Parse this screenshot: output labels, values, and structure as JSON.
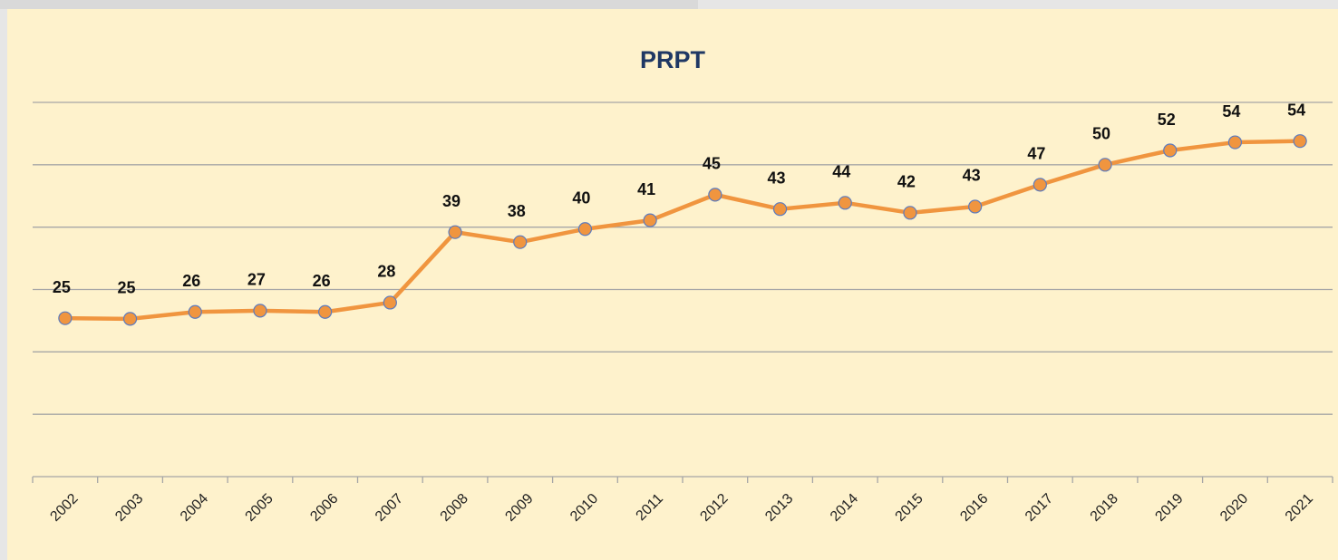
{
  "chart_data": {
    "type": "line",
    "title": "PRPT",
    "categories": [
      "2002",
      "2003",
      "2004",
      "2005",
      "2006",
      "2007",
      "2008",
      "2009",
      "2010",
      "2011",
      "2012",
      "2013",
      "2014",
      "2015",
      "2016",
      "2017",
      "2018",
      "2019",
      "2020",
      "2021"
    ],
    "series": [
      {
        "name": "PRPT",
        "color": "#f0953f",
        "values": [
          25.4,
          25.3,
          26.4,
          26.6,
          26.4,
          27.9,
          39.2,
          37.6,
          39.7,
          41.1,
          45.2,
          42.9,
          43.9,
          42.3,
          43.3,
          46.8,
          50.0,
          52.3,
          53.6,
          53.8
        ],
        "value_labels": [
          "25",
          "25",
          "26",
          "27",
          "26",
          "28",
          "39",
          "38",
          "40",
          "41",
          "45",
          "43",
          "44",
          "42",
          "43",
          "47",
          "50",
          "52",
          "54",
          "54"
        ]
      }
    ],
    "ylim": [
      0,
      60
    ],
    "yticks": [
      0,
      10,
      20,
      30,
      40,
      50,
      60
    ],
    "grid": true
  }
}
